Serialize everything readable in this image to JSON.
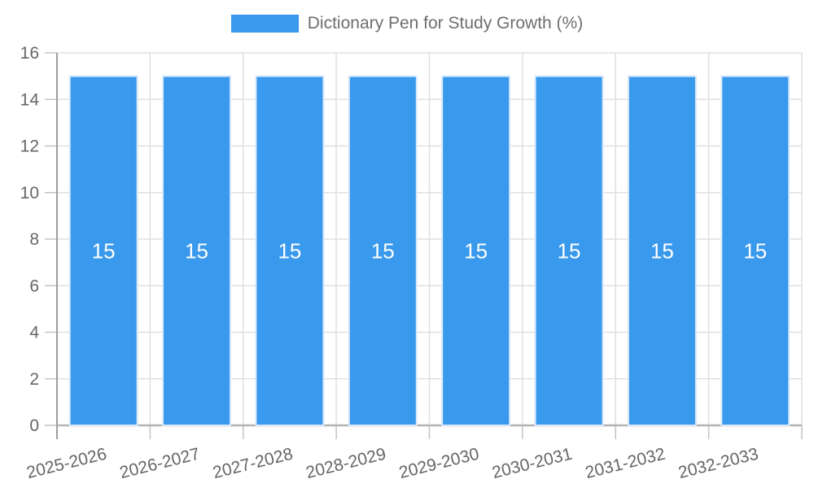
{
  "chart_data": {
    "type": "bar",
    "title": "",
    "legend": {
      "label": "Dictionary Pen for Study Growth (%)",
      "position": "top"
    },
    "categories": [
      "2025-2026",
      "2026-2027",
      "2027-2028",
      "2028-2029",
      "2029-2030",
      "2030-2031",
      "2031-2032",
      "2032-2033"
    ],
    "series": [
      {
        "name": "Dictionary Pen for Study Growth (%)",
        "values": [
          15,
          15,
          15,
          15,
          15,
          15,
          15,
          15
        ]
      }
    ],
    "value_labels": [
      "15",
      "15",
      "15",
      "15",
      "15",
      "15",
      "15",
      "15"
    ],
    "xlabel": "",
    "ylabel": "",
    "ylim": [
      0,
      16
    ],
    "yticks": [
      0,
      2,
      4,
      6,
      8,
      10,
      12,
      14,
      16
    ],
    "grid": true,
    "x_label_rotation_deg": -14,
    "colors": {
      "bar": "#3999ec",
      "bar_border": "#d9e9fb",
      "grid": "#e0e0e0",
      "tick": "#c4c4c4",
      "axis_y": "#9e9e9e",
      "axis_x": "#b3b3b3",
      "tick_label": "#666666",
      "legend_text": "#6e6e6e",
      "value_label": "#ffffff",
      "background": "#ffffff"
    }
  }
}
